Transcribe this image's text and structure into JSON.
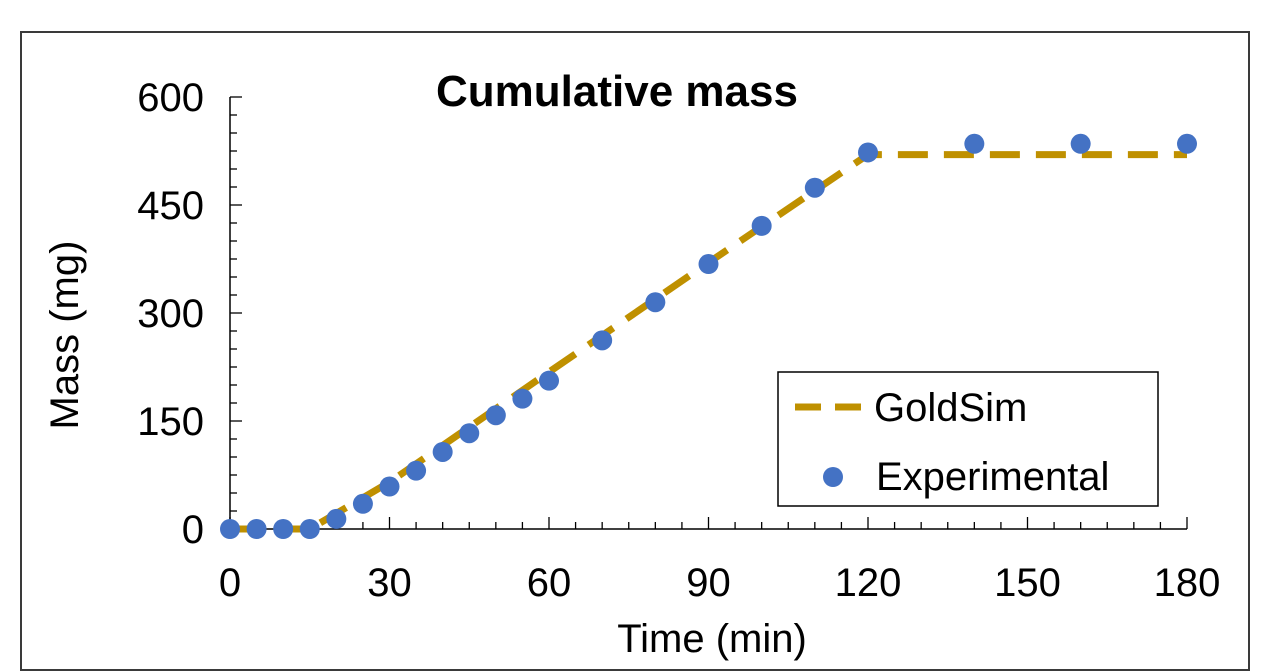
{
  "chart_data": {
    "type": "line",
    "title": "Cumulative mass",
    "xlabel": "Time (min)",
    "ylabel": "Mass (mg)",
    "xlim": [
      0,
      180
    ],
    "ylim": [
      0,
      600
    ],
    "x_ticks": [
      "0",
      "30",
      "60",
      "90",
      "120",
      "150",
      "180"
    ],
    "y_ticks": [
      "0",
      "150",
      "300",
      "450",
      "600"
    ],
    "grid": false,
    "legend_position": "bottom-right",
    "series": [
      {
        "name": "GoldSim",
        "style": "dashed-line",
        "color": "#BF9000",
        "x": [
          0,
          15,
          30,
          60,
          90,
          120,
          180
        ],
        "y": [
          0,
          0,
          65,
          218,
          370,
          520,
          520
        ]
      },
      {
        "name": "Experimental",
        "style": "markers",
        "color": "#4472C4",
        "x": [
          0,
          5,
          10,
          15,
          20,
          25,
          30,
          35,
          40,
          45,
          50,
          55,
          60,
          70,
          80,
          90,
          100,
          110,
          120,
          140,
          160,
          180
        ],
        "y": [
          0,
          0,
          0,
          0,
          14,
          35,
          59,
          81,
          107,
          133,
          158,
          181,
          206,
          262,
          315,
          368,
          421,
          474,
          523,
          535,
          535,
          535
        ]
      }
    ]
  }
}
